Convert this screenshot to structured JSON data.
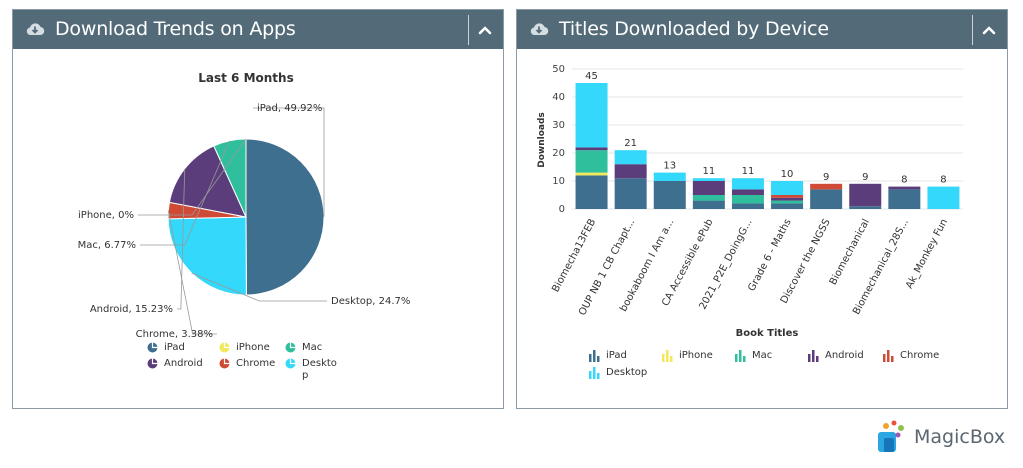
{
  "left_panel": {
    "title": "Download Trends on Apps",
    "icon": "cloud-download-icon",
    "collapse_icon": "chevron-up-icon"
  },
  "right_panel": {
    "title": "Titles Downloaded by Device",
    "icon": "cloud-download-icon",
    "collapse_icon": "chevron-up-icon"
  },
  "colors": {
    "header": "#536b78",
    "iPad": "#3f6f8f",
    "iPhone": "#f2e85a",
    "Mac": "#2fbf9d",
    "Android": "#5a3d7a",
    "Chrome": "#cf4b36",
    "Desktop": "#34d8fb"
  },
  "chart_data": [
    {
      "type": "pie",
      "title": "Last 6 Months",
      "slices": [
        {
          "name": "iPad",
          "value": 49.92,
          "label": "iPad, 49.92%"
        },
        {
          "name": "Desktop",
          "value": 24.7,
          "label": "Desktop, 24.7%"
        },
        {
          "name": "Chrome",
          "value": 3.38,
          "label": "Chrome, 3.38%"
        },
        {
          "name": "Android",
          "value": 15.23,
          "label": "Android, 15.23%"
        },
        {
          "name": "Mac",
          "value": 6.77,
          "label": "Mac, 6.77%"
        },
        {
          "name": "iPhone",
          "value": 0,
          "label": "iPhone, 0%"
        }
      ],
      "legend": [
        "iPad",
        "iPhone",
        "Mac",
        "Android",
        "Chrome",
        "Deskto p"
      ],
      "legend_placement": "bottom"
    },
    {
      "type": "bar",
      "stacked": true,
      "xlabel": "Book Titles",
      "ylabel": "Downloads",
      "ylim": [
        0,
        50
      ],
      "yticks": [
        0,
        10,
        20,
        30,
        40,
        50
      ],
      "grid": true,
      "categories": [
        "Biomecha13FEB",
        "OUP NB 1 CB Chapt...",
        "bookaboom I Am a...",
        "CA Accessible ePub",
        "2021_P2E_DoingG...",
        "Grade 6 - Maths",
        "Discover the NGSS",
        "Biomechanical",
        "Biomechanical_28S...",
        "Ak_Monkey Fun"
      ],
      "totals": [
        45,
        21,
        13,
        11,
        11,
        10,
        9,
        9,
        8,
        8
      ],
      "series": [
        {
          "name": "iPad",
          "values": [
            12,
            11,
            10,
            3,
            2,
            2,
            7,
            1,
            7,
            0
          ]
        },
        {
          "name": "iPhone",
          "values": [
            1,
            0,
            0,
            0,
            0,
            0,
            0,
            0,
            0,
            0
          ]
        },
        {
          "name": "Mac",
          "values": [
            8,
            0,
            0,
            2,
            3,
            1,
            0,
            0,
            0,
            0
          ]
        },
        {
          "name": "Android",
          "values": [
            1,
            5,
            0,
            5,
            2,
            1,
            0,
            8,
            1,
            0
          ]
        },
        {
          "name": "Chrome",
          "values": [
            0,
            0,
            0,
            0,
            0,
            1,
            2,
            0,
            0,
            0
          ]
        },
        {
          "name": "Desktop",
          "values": [
            23,
            5,
            3,
            1,
            4,
            5,
            0,
            0,
            0,
            8
          ]
        }
      ],
      "legend": [
        "iPad",
        "iPhone",
        "Mac",
        "Android",
        "Chrome",
        "Desktop"
      ],
      "legend_placement": "bottom"
    }
  ],
  "brand": {
    "name": "MagicBox",
    "icon": "magicbox-logo-icon"
  }
}
